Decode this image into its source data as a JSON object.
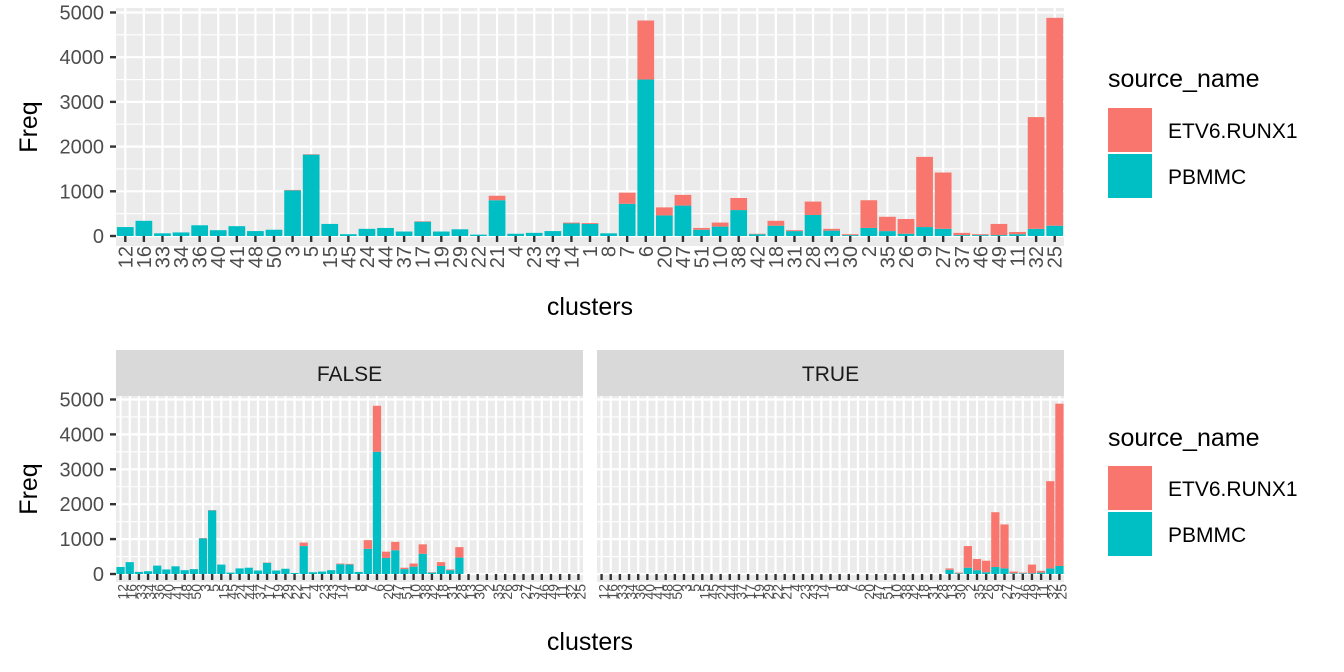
{
  "colors": {
    "ETV6.RUNX1": "#F8766D",
    "PBMMC": "#00BFC4"
  },
  "chart_data": [
    {
      "type": "bar",
      "stacked": true,
      "xlabel": "clusters",
      "ylabel": "Freq",
      "yticks": [
        0,
        1000,
        2000,
        3000,
        4000,
        5000
      ],
      "ylim": [
        0,
        5100
      ],
      "categories": [
        "12",
        "16",
        "33",
        "34",
        "36",
        "40",
        "41",
        "48",
        "50",
        "3",
        "5",
        "15",
        "45",
        "24",
        "44",
        "37",
        "17",
        "19",
        "29",
        "22",
        "21",
        "4",
        "23",
        "43",
        "14",
        "1",
        "8",
        "7",
        "6",
        "20",
        "47",
        "51",
        "10",
        "38",
        "42",
        "18",
        "31",
        "28",
        "13",
        "30",
        "2",
        "35",
        "26",
        "9",
        "27",
        "37",
        "46",
        "49",
        "11",
        "32",
        "25"
      ],
      "series": [
        {
          "name": "PBMMC",
          "values": [
            200,
            340,
            60,
            80,
            240,
            130,
            220,
            110,
            140,
            1020,
            1820,
            270,
            40,
            160,
            180,
            100,
            320,
            100,
            150,
            30,
            800,
            50,
            70,
            110,
            280,
            270,
            60,
            720,
            3500,
            460,
            680,
            140,
            210,
            580,
            40,
            230,
            110,
            470,
            120,
            20,
            180,
            110,
            50,
            200,
            160,
            20,
            20,
            20,
            40,
            160,
            230
          ]
        },
        {
          "name": "ETV6.RUNX1",
          "values": [
            0,
            0,
            0,
            0,
            0,
            0,
            0,
            0,
            0,
            10,
            10,
            0,
            0,
            0,
            0,
            0,
            10,
            0,
            0,
            0,
            100,
            0,
            0,
            0,
            20,
            20,
            0,
            250,
            1320,
            180,
            240,
            40,
            90,
            270,
            10,
            110,
            20,
            300,
            40,
            20,
            620,
            320,
            330,
            1570,
            1260,
            50,
            20,
            250,
            50,
            2500,
            4650
          ]
        }
      ],
      "legend": {
        "title": "source_name",
        "entries": [
          "ETV6.RUNX1",
          "PBMMC"
        ],
        "position": "right"
      },
      "grid": true
    },
    {
      "type": "bar",
      "stacked": true,
      "facets": [
        "FALSE",
        "TRUE"
      ],
      "xlabel": "clusters",
      "ylabel": "Freq",
      "yticks": [
        0,
        1000,
        2000,
        3000,
        4000,
        5000
      ],
      "ylim": [
        0,
        5100
      ],
      "categories": [
        "12",
        "16",
        "33",
        "34",
        "36",
        "40",
        "41",
        "48",
        "50",
        "3",
        "5",
        "15",
        "45",
        "24",
        "44",
        "37",
        "17",
        "19",
        "29",
        "22",
        "21",
        "4",
        "23",
        "43",
        "14",
        "1",
        "8",
        "7",
        "6",
        "20",
        "47",
        "51",
        "10",
        "38",
        "42",
        "18",
        "31",
        "28",
        "13",
        "30",
        "2",
        "35",
        "26",
        "9",
        "27",
        "37",
        "46",
        "49",
        "11",
        "32",
        "25"
      ],
      "facet_false_count": 38,
      "legend": {
        "title": "source_name",
        "entries": [
          "ETV6.RUNX1",
          "PBMMC"
        ],
        "position": "right"
      },
      "grid": true
    }
  ]
}
